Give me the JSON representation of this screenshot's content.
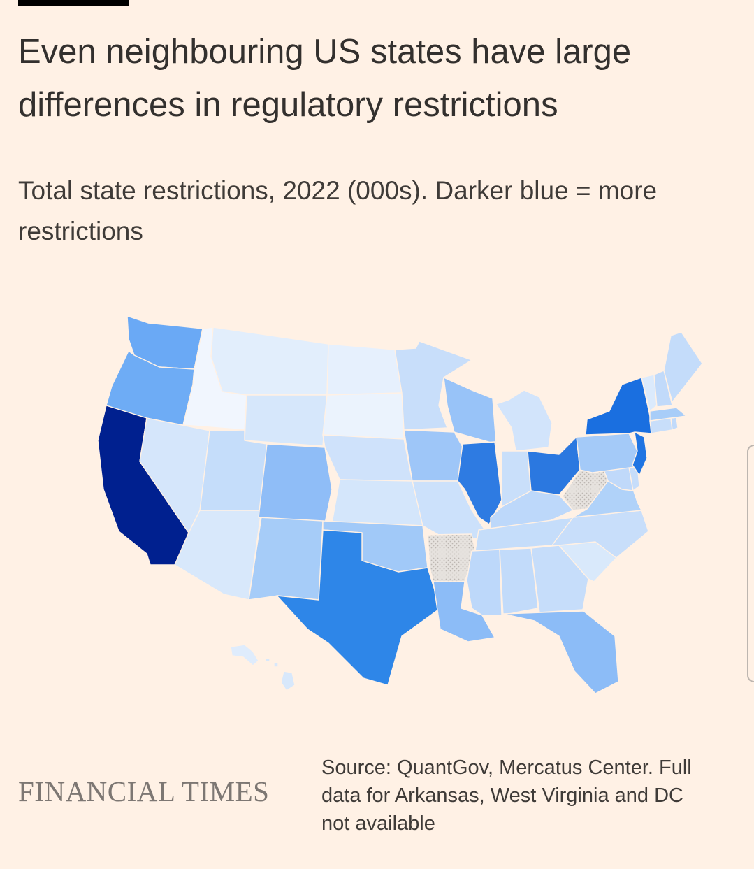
{
  "title": "Even neighbouring US states have large differences in regulatory restrictions",
  "subtitle": "Total state restrictions, 2022 (000s). Darker blue = more restrictions",
  "map": {
    "colors": {
      "CA": "#00208f",
      "NY": "#1a6fe0",
      "TX": "#2e86e8",
      "IL": "#2e7be2",
      "OH": "#2b78e0",
      "NJ": "#1f74e2",
      "WA": "#6aa9f5",
      "OR": "#6eacf5",
      "FL": "#8cbcf7",
      "LA": "#8cbcf7",
      "CO": "#8fbdf7",
      "WI": "#98c3f8",
      "IA": "#9ec6f8",
      "OK": "#a1c9f8",
      "NM": "#a6ccf8",
      "PA": "#a4caf8",
      "MA": "#a8cdf8",
      "VA": "#b0d2f9",
      "UT": "#c5ddfa",
      "NV": "#d5e6fb",
      "AZ": "#d8e8fb",
      "WY": "#d6e7fb",
      "NE": "#cfe2fb",
      "KS": "#d4e6fb",
      "MO": "#cce1fb",
      "MN": "#c8defa",
      "MI": "#d2e4fb",
      "IN": "#c9dffa",
      "KY": "#bdd8fa",
      "TN": "#c5ddfa",
      "MS": "#bdd8fa",
      "AL": "#c2dbfa",
      "GA": "#c6ddfa",
      "SC": "#d9e9fb",
      "NC": "#c8defa",
      "MD": "#c0d9fa",
      "DE": "#c6ddfa",
      "CT": "#c8defa",
      "RI": "#c1dafa",
      "VT": "#dbeafc",
      "NH": "#c1dafa",
      "ME": "#c4dcfa",
      "MT": "#e2eefc",
      "ND": "#e6f0fd",
      "SD": "#ebf3fd",
      "ID": "#f1f6fe",
      "AK": "#dfecfc",
      "HI": "#d8e8fb",
      "AR": "na",
      "WV": "na"
    },
    "na_fill": "#e4e0dc"
  },
  "footer": {
    "logo": "FINANCIAL TIMES",
    "source_line1": "Source: QuantGov, Mercatus Center. Full",
    "source_line2": "data for Arkansas, West Virginia and DC",
    "source_line3": "not available"
  }
}
